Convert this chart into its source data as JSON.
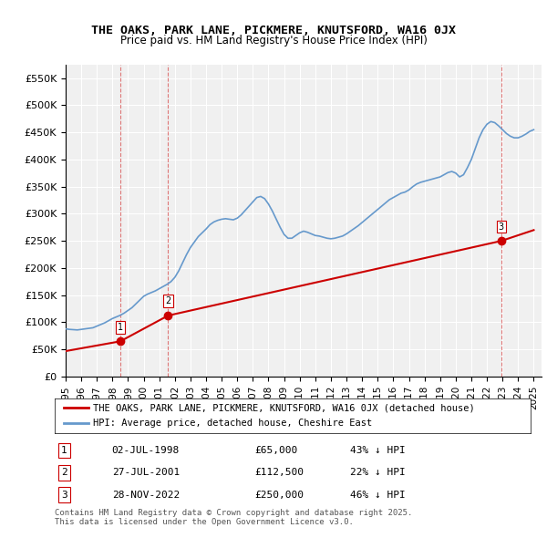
{
  "title": "THE OAKS, PARK LANE, PICKMERE, KNUTSFORD, WA16 0JX",
  "subtitle": "Price paid vs. HM Land Registry's House Price Index (HPI)",
  "ylabel_ticks": [
    "£0",
    "£50K",
    "£100K",
    "£150K",
    "£200K",
    "£250K",
    "£300K",
    "£350K",
    "£400K",
    "£450K",
    "£500K",
    "£550K"
  ],
  "ytick_vals": [
    0,
    50000,
    100000,
    150000,
    200000,
    250000,
    300000,
    350000,
    400000,
    450000,
    500000,
    550000
  ],
  "ylim": [
    0,
    575000
  ],
  "xlim_start": 1995.0,
  "xlim_end": 2025.5,
  "background_color": "#ffffff",
  "plot_bg_color": "#f0f0f0",
  "grid_color": "#ffffff",
  "sale_color": "#cc0000",
  "hpi_color": "#6699cc",
  "sale_label": "THE OAKS, PARK LANE, PICKMERE, KNUTSFORD, WA16 0JX (detached house)",
  "hpi_label": "HPI: Average price, detached house, Cheshire East",
  "purchases": [
    {
      "num": 1,
      "date": "02-JUL-1998",
      "price": 65000,
      "pct": "43%",
      "year": 1998.5
    },
    {
      "num": 2,
      "date": "27-JUL-2001",
      "price": 112500,
      "pct": "22%",
      "year": 2001.57
    },
    {
      "num": 3,
      "date": "28-NOV-2022",
      "price": 250000,
      "pct": "46%",
      "year": 2022.91
    }
  ],
  "footnote": "Contains HM Land Registry data © Crown copyright and database right 2025.\nThis data is licensed under the Open Government Licence v3.0.",
  "hpi_data": {
    "years": [
      1995.0,
      1995.25,
      1995.5,
      1995.75,
      1996.0,
      1996.25,
      1996.5,
      1996.75,
      1997.0,
      1997.25,
      1997.5,
      1997.75,
      1998.0,
      1998.25,
      1998.5,
      1998.75,
      1999.0,
      1999.25,
      1999.5,
      1999.75,
      2000.0,
      2000.25,
      2000.5,
      2000.75,
      2001.0,
      2001.25,
      2001.5,
      2001.75,
      2002.0,
      2002.25,
      2002.5,
      2002.75,
      2003.0,
      2003.25,
      2003.5,
      2003.75,
      2004.0,
      2004.25,
      2004.5,
      2004.75,
      2005.0,
      2005.25,
      2005.5,
      2005.75,
      2006.0,
      2006.25,
      2006.5,
      2006.75,
      2007.0,
      2007.25,
      2007.5,
      2007.75,
      2008.0,
      2008.25,
      2008.5,
      2008.75,
      2009.0,
      2009.25,
      2009.5,
      2009.75,
      2010.0,
      2010.25,
      2010.5,
      2010.75,
      2011.0,
      2011.25,
      2011.5,
      2011.75,
      2012.0,
      2012.25,
      2012.5,
      2012.75,
      2013.0,
      2013.25,
      2013.5,
      2013.75,
      2014.0,
      2014.25,
      2014.5,
      2014.75,
      2015.0,
      2015.25,
      2015.5,
      2015.75,
      2016.0,
      2016.25,
      2016.5,
      2016.75,
      2017.0,
      2017.25,
      2017.5,
      2017.75,
      2018.0,
      2018.25,
      2018.5,
      2018.75,
      2019.0,
      2019.25,
      2019.5,
      2019.75,
      2020.0,
      2020.25,
      2020.5,
      2020.75,
      2021.0,
      2021.25,
      2021.5,
      2021.75,
      2022.0,
      2022.25,
      2022.5,
      2022.75,
      2023.0,
      2023.25,
      2023.5,
      2023.75,
      2024.0,
      2024.25,
      2024.5,
      2024.75,
      2025.0
    ],
    "values": [
      88000,
      87000,
      86500,
      86000,
      87000,
      88000,
      89000,
      90000,
      93000,
      96000,
      99000,
      103000,
      107000,
      110000,
      113000,
      117000,
      122000,
      127000,
      134000,
      141000,
      148000,
      152000,
      155000,
      158000,
      162000,
      166000,
      170000,
      175000,
      183000,
      195000,
      210000,
      225000,
      238000,
      248000,
      258000,
      265000,
      272000,
      280000,
      285000,
      288000,
      290000,
      291000,
      290000,
      289000,
      292000,
      298000,
      306000,
      314000,
      322000,
      330000,
      332000,
      328000,
      318000,
      305000,
      290000,
      275000,
      262000,
      255000,
      255000,
      260000,
      265000,
      268000,
      266000,
      263000,
      260000,
      259000,
      257000,
      255000,
      254000,
      255000,
      257000,
      259000,
      263000,
      268000,
      273000,
      278000,
      284000,
      290000,
      296000,
      302000,
      308000,
      314000,
      320000,
      326000,
      330000,
      334000,
      338000,
      340000,
      344000,
      350000,
      355000,
      358000,
      360000,
      362000,
      364000,
      366000,
      368000,
      372000,
      376000,
      378000,
      375000,
      368000,
      372000,
      385000,
      400000,
      420000,
      440000,
      455000,
      465000,
      470000,
      468000,
      462000,
      455000,
      448000,
      443000,
      440000,
      440000,
      443000,
      447000,
      452000,
      455000
    ]
  },
  "sale_data": {
    "years": [
      1995.0,
      1998.5,
      2001.57,
      2022.91,
      2025.0
    ],
    "values": [
      47000,
      65000,
      112500,
      250000,
      270000
    ]
  },
  "sale_line_segments": [
    {
      "years": [
        1995.0,
        1998.5
      ],
      "values": [
        47000,
        65000
      ]
    },
    {
      "years": [
        1998.5,
        2001.57
      ],
      "values": [
        65000,
        112500
      ]
    },
    {
      "years": [
        2001.57,
        2022.91
      ],
      "values": [
        112500,
        250000
      ]
    },
    {
      "years": [
        2022.91,
        2025.0
      ],
      "values": [
        250000,
        270000
      ]
    }
  ],
  "vline_color": "#cc0000",
  "vline_alpha": 0.5,
  "vline_style": "--"
}
